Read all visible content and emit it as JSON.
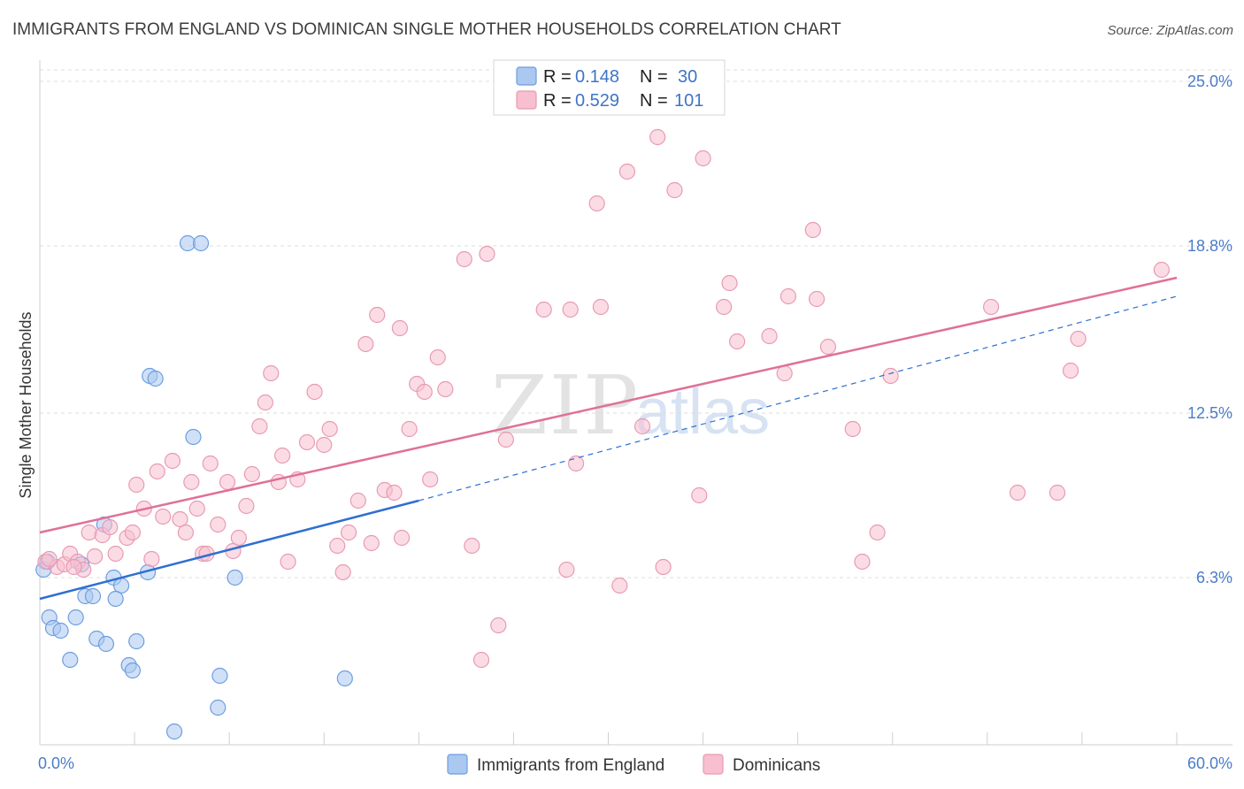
{
  "title": "IMMIGRANTS FROM ENGLAND VS DOMINICAN SINGLE MOTHER HOUSEHOLDS CORRELATION CHART",
  "source": "Source: ZipAtlas.com",
  "watermark": {
    "zip": "ZIP",
    "atlas": "atlas"
  },
  "colors": {
    "blue_fill": "#aac8f0",
    "blue_stroke": "#6d9de0",
    "blue_line": "#2f6fd0",
    "pink_fill": "#f7bfd0",
    "pink_stroke": "#e89ab3",
    "pink_line": "#e07098",
    "tick_label": "#4a7cc9",
    "grid": "#dddddd"
  },
  "legend_box": {
    "rows": [
      {
        "r_label": "R =",
        "r_value": "0.148",
        "n_label": "N =",
        "n_value": "30",
        "color": "blue"
      },
      {
        "r_label": "R =",
        "r_value": "0.529",
        "n_label": "N =",
        "n_value": "101",
        "color": "pink"
      }
    ]
  },
  "bottom_legend": [
    {
      "label": "Immigrants from England",
      "color": "blue"
    },
    {
      "label": "Dominicans",
      "color": "pink"
    }
  ],
  "chart_data": {
    "type": "scatter",
    "title": "IMMIGRANTS FROM ENGLAND VS DOMINICAN SINGLE MOTHER HOUSEHOLDS CORRELATION CHART",
    "xlabel": "",
    "ylabel": "Single Mother Households",
    "xlim": [
      0,
      60
    ],
    "ylim": [
      0,
      25.8
    ],
    "x_tick_labels": [
      {
        "value": 0,
        "label": "0.0%"
      },
      {
        "value": 60,
        "label": "60.0%"
      }
    ],
    "y_tick_labels": [
      {
        "value": 6.3,
        "label": "6.3%"
      },
      {
        "value": 12.5,
        "label": "12.5%"
      },
      {
        "value": 18.8,
        "label": "18.8%"
      },
      {
        "value": 25.0,
        "label": "25.0%"
      }
    ],
    "grid": {
      "horizontal": true,
      "dashed": true
    },
    "series": [
      {
        "name": "Immigrants from England",
        "color": "blue",
        "r": 0.148,
        "n": 30,
        "trend_solid": {
          "x": [
            0,
            20
          ],
          "y": [
            5.5,
            9.2
          ]
        },
        "trend_dashed": {
          "x": [
            20,
            60
          ],
          "y": [
            9.2,
            16.9
          ]
        },
        "points": [
          [
            0.2,
            6.6
          ],
          [
            0.5,
            4.8
          ],
          [
            0.7,
            4.4
          ],
          [
            1.1,
            4.3
          ],
          [
            1.6,
            3.2
          ],
          [
            1.9,
            4.8
          ],
          [
            2.2,
            6.8
          ],
          [
            2.4,
            5.6
          ],
          [
            2.8,
            5.6
          ],
          [
            3.0,
            4.0
          ],
          [
            3.5,
            3.8
          ],
          [
            3.4,
            8.3
          ],
          [
            3.9,
            6.3
          ],
          [
            4.3,
            6.0
          ],
          [
            4.0,
            5.5
          ],
          [
            4.7,
            3.0
          ],
          [
            4.9,
            2.8
          ],
          [
            5.1,
            3.9
          ],
          [
            5.7,
            6.5
          ],
          [
            5.8,
            13.9
          ],
          [
            6.1,
            13.8
          ],
          [
            7.1,
            0.5
          ],
          [
            7.8,
            18.9
          ],
          [
            8.5,
            18.9
          ],
          [
            8.1,
            11.6
          ],
          [
            9.4,
            1.4
          ],
          [
            9.5,
            2.6
          ],
          [
            10.3,
            6.3
          ],
          [
            16.1,
            2.5
          ],
          [
            0.4,
            6.9
          ]
        ]
      },
      {
        "name": "Dominicans",
        "color": "pink",
        "r": 0.529,
        "n": 101,
        "trend_solid": {
          "x": [
            0,
            60
          ],
          "y": [
            8.0,
            17.6
          ]
        },
        "points": [
          [
            0.3,
            6.9
          ],
          [
            0.9,
            6.7
          ],
          [
            1.3,
            6.8
          ],
          [
            1.6,
            7.2
          ],
          [
            2.0,
            6.9
          ],
          [
            2.3,
            6.6
          ],
          [
            2.6,
            8.0
          ],
          [
            2.9,
            7.1
          ],
          [
            3.3,
            7.9
          ],
          [
            3.7,
            8.2
          ],
          [
            4.0,
            7.2
          ],
          [
            4.6,
            7.8
          ],
          [
            4.9,
            8.0
          ],
          [
            5.1,
            9.8
          ],
          [
            5.5,
            8.9
          ],
          [
            5.9,
            7.0
          ],
          [
            6.2,
            10.3
          ],
          [
            6.5,
            8.6
          ],
          [
            7.0,
            10.7
          ],
          [
            7.4,
            8.5
          ],
          [
            7.7,
            8.0
          ],
          [
            8.0,
            9.9
          ],
          [
            8.3,
            8.9
          ],
          [
            8.6,
            7.2
          ],
          [
            9.0,
            10.6
          ],
          [
            9.4,
            8.3
          ],
          [
            9.9,
            9.9
          ],
          [
            10.2,
            7.3
          ],
          [
            10.5,
            7.8
          ],
          [
            10.9,
            9.0
          ],
          [
            11.2,
            10.2
          ],
          [
            11.6,
            12.0
          ],
          [
            11.9,
            12.9
          ],
          [
            12.2,
            14.0
          ],
          [
            12.6,
            9.9
          ],
          [
            12.8,
            10.9
          ],
          [
            13.1,
            6.9
          ],
          [
            13.6,
            10.0
          ],
          [
            14.1,
            11.4
          ],
          [
            14.5,
            13.3
          ],
          [
            15.0,
            11.3
          ],
          [
            15.3,
            11.9
          ],
          [
            15.7,
            7.5
          ],
          [
            16.0,
            6.5
          ],
          [
            16.3,
            8.0
          ],
          [
            16.8,
            9.2
          ],
          [
            17.2,
            15.1
          ],
          [
            17.5,
            7.6
          ],
          [
            17.8,
            16.2
          ],
          [
            18.2,
            9.6
          ],
          [
            18.7,
            9.5
          ],
          [
            19.0,
            15.7
          ],
          [
            19.1,
            7.8
          ],
          [
            19.5,
            11.9
          ],
          [
            19.9,
            13.6
          ],
          [
            20.3,
            13.3
          ],
          [
            20.6,
            10.0
          ],
          [
            21.0,
            14.6
          ],
          [
            21.4,
            13.4
          ],
          [
            22.4,
            18.3
          ],
          [
            22.8,
            7.5
          ],
          [
            23.3,
            3.2
          ],
          [
            23.6,
            18.5
          ],
          [
            24.2,
            4.5
          ],
          [
            24.6,
            11.5
          ],
          [
            26.6,
            16.4
          ],
          [
            27.8,
            6.6
          ],
          [
            28.0,
            16.4
          ],
          [
            28.3,
            10.6
          ],
          [
            29.4,
            20.4
          ],
          [
            29.6,
            16.5
          ],
          [
            30.6,
            6.0
          ],
          [
            31.0,
            21.6
          ],
          [
            31.8,
            12.0
          ],
          [
            32.6,
            22.9
          ],
          [
            32.9,
            6.7
          ],
          [
            33.5,
            20.9
          ],
          [
            34.8,
            9.4
          ],
          [
            35.0,
            22.1
          ],
          [
            36.1,
            16.5
          ],
          [
            36.4,
            17.4
          ],
          [
            36.8,
            15.2
          ],
          [
            38.5,
            15.4
          ],
          [
            39.3,
            14.0
          ],
          [
            39.5,
            16.9
          ],
          [
            40.8,
            19.4
          ],
          [
            41.0,
            16.8
          ],
          [
            41.6,
            15.0
          ],
          [
            42.9,
            11.9
          ],
          [
            43.4,
            6.9
          ],
          [
            44.2,
            8.0
          ],
          [
            44.9,
            13.9
          ],
          [
            50.2,
            16.5
          ],
          [
            51.6,
            9.5
          ],
          [
            53.7,
            9.5
          ],
          [
            54.4,
            14.1
          ],
          [
            54.8,
            15.3
          ],
          [
            59.2,
            17.9
          ],
          [
            0.5,
            7.0
          ],
          [
            1.8,
            6.7
          ],
          [
            8.8,
            7.2
          ]
        ]
      }
    ]
  }
}
